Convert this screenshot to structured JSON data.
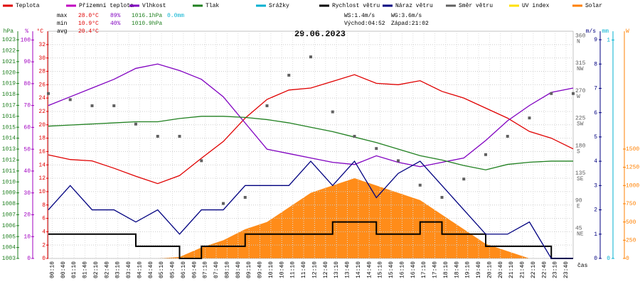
{
  "chart_data": {
    "type": "line",
    "title": "29.06.2023",
    "xlim": [
      0,
      24
    ],
    "x": [
      0,
      1,
      2,
      3,
      4,
      5,
      6,
      7,
      8,
      9,
      10,
      11,
      12,
      13,
      14,
      15,
      16,
      17,
      18,
      19,
      20,
      21,
      22,
      23,
      24
    ],
    "x_labels": [
      "00:10",
      "00:40",
      "01:10",
      "01:40",
      "02:10",
      "02:40",
      "03:10",
      "03:40",
      "04:10",
      "04:40",
      "05:10",
      "05:40",
      "06:10",
      "06:40",
      "07:10",
      "07:40",
      "08:10",
      "08:40",
      "09:10",
      "09:40",
      "10:10",
      "10:40",
      "11:10",
      "11:40",
      "12:10",
      "12:40",
      "13:10",
      "13:40",
      "14:10",
      "14:40",
      "15:10",
      "15:40",
      "16:10",
      "16:40",
      "17:10",
      "17:40",
      "18:10",
      "18:40",
      "19:10",
      "19:40",
      "20:10",
      "20:40",
      "21:10",
      "21:40",
      "22:10",
      "22:40",
      "23:10",
      "23:40"
    ],
    "x_axis_label": "čas",
    "axes": {
      "hPa": {
        "label": "hPa",
        "color": "#208020",
        "lim": [
          1003,
          1023.78
        ],
        "ticks": [
          1003,
          1004,
          1005,
          1006,
          1007,
          1008,
          1009,
          1010,
          1011,
          1012,
          1013,
          1014,
          1015,
          1016,
          1017,
          1018,
          1019,
          1020,
          1021,
          1022,
          1023
        ]
      },
      "pct": {
        "label": "%",
        "color": "#a000c0",
        "lim": [
          0,
          104
        ],
        "ticks": [
          0,
          10,
          20,
          30,
          40,
          50,
          60,
          70,
          80,
          90,
          100
        ]
      },
      "C": {
        "label": "°C",
        "color": "#e00000",
        "lim": [
          0,
          34
        ],
        "ticks": [
          0,
          2,
          4,
          6,
          8,
          10,
          12,
          14,
          16,
          18,
          20,
          22,
          24,
          26,
          28,
          30,
          32
        ]
      },
      "dir": {
        "label": "",
        "color": "#606060",
        "lim": [
          0,
          372
        ],
        "ticks": [
          {
            "value": 45,
            "label": "45",
            "dir": "NE"
          },
          {
            "value": 90,
            "label": "90",
            "dir": "E"
          },
          {
            "value": 135,
            "label": "135",
            "dir": "SE"
          },
          {
            "value": 180,
            "label": "180",
            "dir": "S"
          },
          {
            "value": 225,
            "label": "225",
            "dir": "SW"
          },
          {
            "value": 270,
            "label": "270",
            "dir": "W"
          },
          {
            "value": 315,
            "label": "315",
            "dir": "NW"
          },
          {
            "value": 360,
            "label": "360",
            "dir": "N"
          }
        ]
      },
      "ms": {
        "label": "m/s",
        "color": "#000080",
        "lim": [
          0,
          9.35
        ],
        "ticks": [
          0,
          1,
          2,
          3,
          4,
          5,
          6,
          7,
          8,
          9
        ]
      },
      "mm": {
        "label": "mm",
        "color": "#00b0d0",
        "lim": [
          0,
          1.04
        ],
        "ticks": [
          0,
          1
        ]
      },
      "W": {
        "label": "W",
        "color": "#ff8000",
        "lim": [
          0,
          3116
        ],
        "ticks": [
          0,
          250,
          500,
          750,
          1000,
          1250,
          1500
        ]
      }
    },
    "series": [
      {
        "name": "Teplota",
        "color": "#e00000",
        "axis": "C",
        "style": "line",
        "values": [
          15.5,
          14.8,
          14.6,
          13.5,
          12.3,
          11.2,
          12.4,
          15,
          17.5,
          21,
          23.8,
          25.2,
          25.5,
          26.5,
          27.5,
          26.2,
          26,
          26.6,
          25,
          24,
          22.5,
          21,
          19,
          18,
          16.4
        ]
      },
      {
        "name": "Přízemní teplota",
        "color": "#c000c0"
      },
      {
        "name": "Vlhkost",
        "color": "#8000c0",
        "axis": "pct",
        "style": "line",
        "values": [
          70,
          74,
          78,
          82,
          87,
          89,
          86,
          82,
          74,
          62,
          50,
          48,
          46,
          44,
          43,
          47,
          44,
          42,
          44,
          46,
          54,
          63,
          70,
          76,
          78
        ]
      },
      {
        "name": "Tlak",
        "color": "#208020",
        "axis": "hPa",
        "style": "line",
        "values": [
          1015.1,
          1015.2,
          1015.3,
          1015.4,
          1015.5,
          1015.5,
          1015.8,
          1016,
          1016,
          1015.9,
          1015.7,
          1015.4,
          1015,
          1014.6,
          1014.1,
          1013.6,
          1013,
          1012.4,
          1012,
          1011.5,
          1011.1,
          1011.6,
          1011.8,
          1011.9,
          1011.9
        ]
      },
      {
        "name": "Srážky",
        "color": "#00b0d0"
      },
      {
        "name": "Rychlost větru",
        "color": "#000000",
        "axis": "ms",
        "style": "step",
        "values": [
          1,
          1,
          1,
          1,
          0.5,
          0.5,
          0,
          0.5,
          0.5,
          1,
          1,
          1,
          1,
          1.5,
          1.5,
          1,
          1,
          1.5,
          1,
          1,
          0.5,
          0.5,
          0.5,
          0,
          0
        ]
      },
      {
        "name": "Náraz větru",
        "color": "#000080",
        "axis": "ms",
        "style": "line",
        "values": [
          2,
          3,
          2,
          2,
          1.5,
          2,
          1,
          2,
          2,
          3,
          3,
          3,
          4,
          3,
          4,
          2.5,
          3.5,
          4,
          3,
          2,
          1,
          1,
          1.5,
          0,
          0
        ]
      },
      {
        "name": "Směr větru",
        "color": "#606060",
        "axis": "dir",
        "style": "points",
        "values": [
          270,
          260,
          250,
          250,
          220,
          200,
          200,
          160,
          90,
          100,
          250,
          300,
          330,
          240,
          200,
          180,
          160,
          120,
          100,
          130,
          170,
          200,
          230,
          270,
          270
        ]
      },
      {
        "name": "UV index",
        "color": "#ffe000"
      },
      {
        "name": "Solar",
        "color": "#ff8000",
        "axis": "W",
        "style": "area",
        "values": [
          0,
          0,
          0,
          0,
          0,
          0,
          20,
          150,
          250,
          400,
          500,
          700,
          900,
          1000,
          1100,
          1000,
          900,
          800,
          600,
          400,
          200,
          100,
          0,
          0,
          0
        ]
      }
    ],
    "stats": [
      [
        "max",
        "28.0°C",
        "89%",
        "1016.1hPa",
        "0.0mm"
      ],
      [
        "min",
        "10.9°C",
        "40%",
        "1010.9hPa"
      ],
      [
        "avg",
        "20.4°C"
      ]
    ],
    "info": [
      [
        "WS:1.4m/s",
        "WG:3.6m/s"
      ],
      [
        "Východ:04:52",
        "Západ:21:02"
      ]
    ]
  }
}
